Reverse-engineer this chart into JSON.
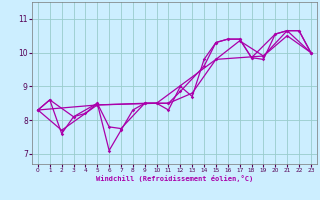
{
  "xlabel": "Windchill (Refroidissement éolien,°C)",
  "bg_color": "#cceeff",
  "line_color": "#aa00aa",
  "grid_color": "#99cccc",
  "xlim": [
    -0.5,
    23.5
  ],
  "ylim": [
    6.7,
    11.5
  ],
  "yticks": [
    7,
    8,
    9,
    10,
    11
  ],
  "xticks": [
    0,
    1,
    2,
    3,
    4,
    5,
    6,
    7,
    8,
    9,
    10,
    11,
    12,
    13,
    14,
    15,
    16,
    17,
    18,
    19,
    20,
    21,
    22,
    23
  ],
  "series1": [
    [
      0,
      8.3
    ],
    [
      1,
      8.6
    ],
    [
      2,
      7.6
    ],
    [
      3,
      8.1
    ],
    [
      4,
      8.2
    ],
    [
      5,
      8.5
    ],
    [
      6,
      7.1
    ],
    [
      7,
      7.7
    ],
    [
      8,
      8.3
    ],
    [
      9,
      8.5
    ],
    [
      10,
      8.5
    ],
    [
      11,
      8.3
    ],
    [
      12,
      9.0
    ],
    [
      13,
      8.7
    ],
    [
      14,
      9.8
    ],
    [
      15,
      10.3
    ],
    [
      16,
      10.4
    ],
    [
      17,
      10.4
    ],
    [
      18,
      9.85
    ],
    [
      19,
      9.8
    ],
    [
      20,
      10.55
    ],
    [
      21,
      10.65
    ],
    [
      22,
      10.65
    ],
    [
      23,
      10.0
    ]
  ],
  "series2": [
    [
      0,
      8.3
    ],
    [
      1,
      8.6
    ],
    [
      3,
      8.1
    ],
    [
      5,
      8.5
    ],
    [
      6,
      7.8
    ],
    [
      7,
      7.75
    ],
    [
      9,
      8.5
    ],
    [
      11,
      8.5
    ],
    [
      12,
      8.85
    ],
    [
      14,
      9.6
    ],
    [
      15,
      10.3
    ],
    [
      16,
      10.4
    ],
    [
      17,
      10.4
    ],
    [
      18,
      9.85
    ],
    [
      20,
      10.55
    ],
    [
      21,
      10.65
    ],
    [
      22,
      10.65
    ],
    [
      23,
      10.0
    ]
  ],
  "series3": [
    [
      0,
      8.3
    ],
    [
      2,
      7.7
    ],
    [
      5,
      8.45
    ],
    [
      9,
      8.5
    ],
    [
      11,
      8.5
    ],
    [
      13,
      8.8
    ],
    [
      15,
      9.8
    ],
    [
      17,
      10.35
    ],
    [
      19,
      9.9
    ],
    [
      21,
      10.65
    ],
    [
      23,
      10.0
    ]
  ],
  "series4": [
    [
      0,
      8.3
    ],
    [
      5,
      8.45
    ],
    [
      10,
      8.5
    ],
    [
      15,
      9.8
    ],
    [
      19,
      9.9
    ],
    [
      21,
      10.5
    ],
    [
      23,
      10.0
    ]
  ]
}
